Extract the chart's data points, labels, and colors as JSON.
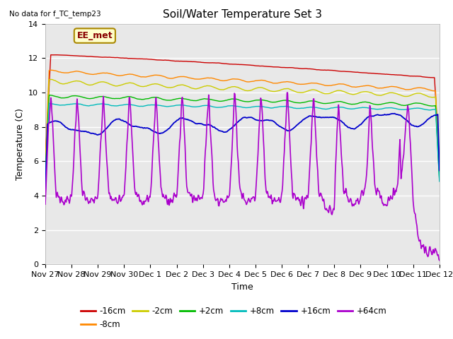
{
  "title": "Soil/Water Temperature Set 3",
  "xlabel": "Time",
  "ylabel": "Temperature (C)",
  "note": "No data for f_TC_temp23",
  "annotation": "EE_met",
  "ylim": [
    0,
    14
  ],
  "yticks": [
    0,
    2,
    4,
    6,
    8,
    10,
    12,
    14
  ],
  "xtick_labels": [
    "Nov 27",
    "Nov 28",
    "Nov 29",
    "Nov 30",
    "Dec 1",
    "Dec 2",
    "Dec 3",
    "Dec 4",
    "Dec 5",
    "Dec 6",
    "Dec 7",
    "Dec 8",
    "Dec 9",
    "Dec 10",
    "Dec 11",
    "Dec 12"
  ],
  "series": {
    "-16cm": {
      "color": "#cc0000"
    },
    "-8cm": {
      "color": "#ff8800"
    },
    "-2cm": {
      "color": "#cccc00"
    },
    "+2cm": {
      "color": "#00bb00"
    },
    "+8cm": {
      "color": "#00bbbb"
    },
    "+16cm": {
      "color": "#0000cc"
    },
    "+64cm": {
      "color": "#aa00cc"
    }
  },
  "bg_color": "#e8e8e8",
  "title_fontsize": 11,
  "axis_fontsize": 9,
  "tick_fontsize": 8
}
